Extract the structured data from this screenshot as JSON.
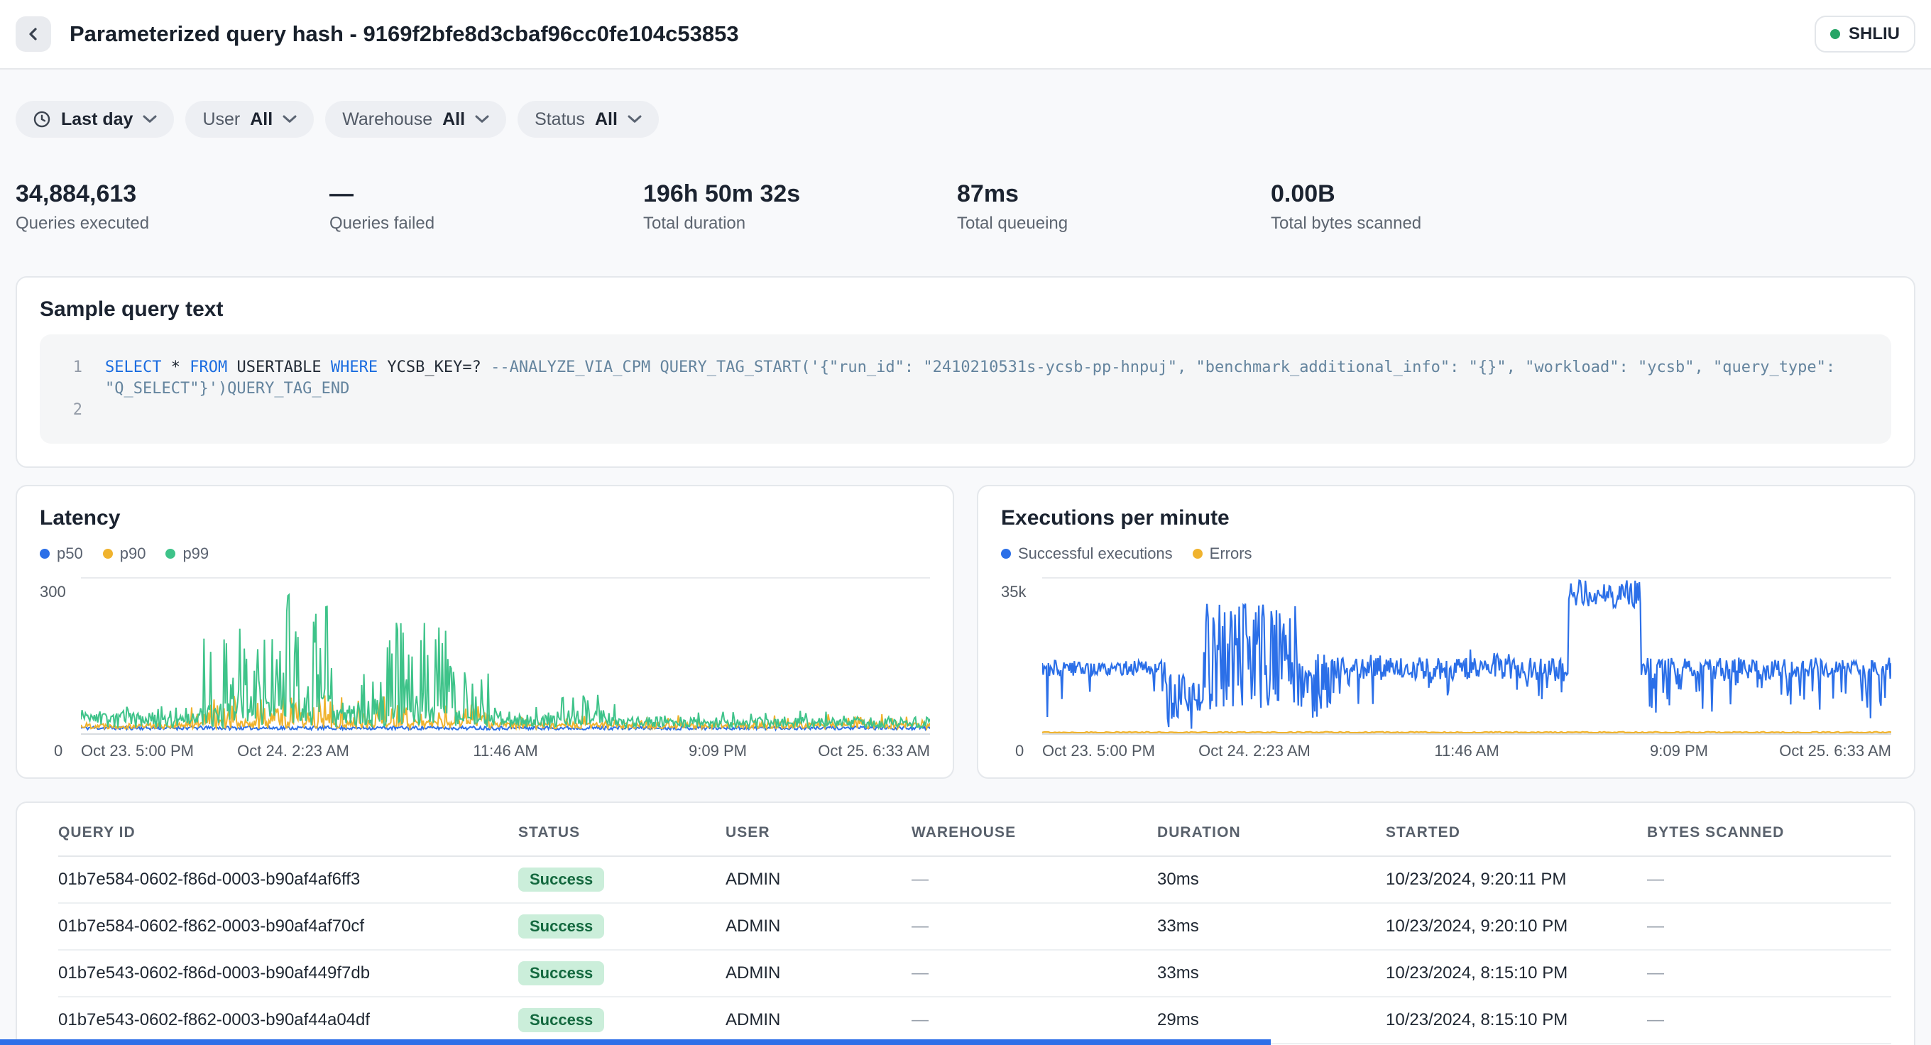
{
  "header": {
    "title": "Parameterized query hash - 9169f2bfe8d3cbaf96cc0fe104c53853",
    "account_badge": "SHLIU"
  },
  "filters": [
    {
      "id": "time-range",
      "icon": "clock",
      "label": "",
      "value": "Last day"
    },
    {
      "id": "user",
      "label": "User",
      "value": "All"
    },
    {
      "id": "warehouse",
      "label": "Warehouse",
      "value": "All"
    },
    {
      "id": "status",
      "label": "Status",
      "value": "All"
    }
  ],
  "stats": [
    {
      "value": "34,884,613",
      "label": "Queries executed"
    },
    {
      "value": "—",
      "label": "Queries failed"
    },
    {
      "value": "196h 50m 32s",
      "label": "Total duration"
    },
    {
      "value": "87ms",
      "label": "Total queueing"
    },
    {
      "value": "0.00B",
      "label": "Total bytes scanned"
    }
  ],
  "sample_query": {
    "title": "Sample query text",
    "lines": [
      {
        "number": "1",
        "tokens": [
          {
            "t": "SELECT",
            "c": "kw"
          },
          {
            "t": " * ",
            "c": "pl"
          },
          {
            "t": "FROM",
            "c": "kw"
          },
          {
            "t": " USERTABLE ",
            "c": "pl"
          },
          {
            "t": "WHERE",
            "c": "kw"
          },
          {
            "t": " YCSB_KEY=? ",
            "c": "pl"
          },
          {
            "t": "--ANALYZE_VIA_CPM QUERY_TAG_START('{\"run_id\": \"2410210531s-ycsb-pp-hnpuj\", \"benchmark_additional_info\": \"{}\", \"workload\": \"ycsb\", \"query_type\": \"Q_SELECT\"}')QUERY_TAG_END",
            "c": "cm"
          }
        ]
      },
      {
        "number": "2",
        "tokens": []
      }
    ]
  },
  "chart_data": [
    {
      "id": "latency",
      "type": "line",
      "title": "Latency",
      "ylabel": "",
      "xlabel": "",
      "y_top_label": "300",
      "y_bottom_label": "0",
      "ylim": [
        0,
        300
      ],
      "x_ticks": [
        "Oct 23. 5:00 PM",
        "Oct 24. 2:23 AM",
        "11:46 AM",
        "9:09 PM",
        "Oct 25. 6:33 AM"
      ],
      "legend_position": "top-left",
      "series": [
        {
          "name": "p50",
          "color": "#2b6fe8",
          "seed": 11,
          "n": 760,
          "w": 1,
          "seg": [
            {
              "f0": 0,
              "f1": 1,
              "base": 0.035,
              "amp": 0.012
            }
          ]
        },
        {
          "name": "p90",
          "color": "#f0b32e",
          "seed": 22,
          "n": 760,
          "w": 1,
          "seg": [
            {
              "f0": 0,
              "f1": 0.13,
              "base": 0.05,
              "amp": 0.02
            },
            {
              "f0": 0.13,
              "f1": 0.36,
              "base": 0.06,
              "amp": 0.03,
              "spikeP": 0.35,
              "spikeA": 0.18
            },
            {
              "f0": 0.36,
              "f1": 0.48,
              "base": 0.06,
              "amp": 0.03,
              "spikeP": 0.35,
              "spikeA": 0.15
            },
            {
              "f0": 0.48,
              "f1": 1,
              "base": 0.05,
              "amp": 0.02,
              "spikeP": 0.08,
              "spikeA": 0.06
            }
          ]
        },
        {
          "name": "p99",
          "color": "#3ec389",
          "seed": 33,
          "n": 760,
          "w": 1,
          "seg": [
            {
              "f0": 0,
              "f1": 0.14,
              "base": 0.085,
              "amp": 0.05,
              "spikeP": 0.15,
              "spikeA": 0.12
            },
            {
              "f0": 0.14,
              "f1": 0.24,
              "base": 0.12,
              "amp": 0.08,
              "spikeP": 0.45,
              "spikeA": 0.5
            },
            {
              "f0": 0.24,
              "f1": 0.3,
              "base": 0.14,
              "amp": 0.1,
              "spikeP": 0.5,
              "spikeA": 0.85
            },
            {
              "f0": 0.3,
              "f1": 0.36,
              "base": 0.1,
              "amp": 0.06,
              "spikeP": 0.3,
              "spikeA": 0.3
            },
            {
              "f0": 0.36,
              "f1": 0.43,
              "base": 0.12,
              "amp": 0.08,
              "spikeP": 0.5,
              "spikeA": 0.6
            },
            {
              "f0": 0.43,
              "f1": 0.48,
              "base": 0.1,
              "amp": 0.06,
              "spikeP": 0.35,
              "spikeA": 0.35
            },
            {
              "f0": 0.48,
              "f1": 0.56,
              "base": 0.08,
              "amp": 0.04,
              "spikeP": 0.1,
              "spikeA": 0.08
            },
            {
              "f0": 0.56,
              "f1": 0.63,
              "base": 0.1,
              "amp": 0.05,
              "spikeP": 0.3,
              "spikeA": 0.15
            },
            {
              "f0": 0.63,
              "f1": 1,
              "base": 0.07,
              "amp": 0.035,
              "spikeP": 0.08,
              "spikeA": 0.07
            }
          ]
        }
      ]
    },
    {
      "id": "executions",
      "type": "line",
      "title": "Executions per minute",
      "ylabel": "",
      "xlabel": "",
      "y_top_label": "35k",
      "y_bottom_label": "0",
      "ylim": [
        0,
        35000
      ],
      "x_ticks": [
        "Oct 23. 5:00 PM",
        "Oct 24. 2:23 AM",
        "11:46 AM",
        "9:09 PM",
        "Oct 25. 6:33 AM"
      ],
      "legend_position": "top-left",
      "series": [
        {
          "name": "Successful executions",
          "color": "#2b6fe8",
          "seed": 44,
          "n": 820,
          "w": 1.1,
          "seg": [
            {
              "f0": 0,
              "f1": 0.145,
              "base": 0.42,
              "amp": 0.05,
              "dipP": 0.05,
              "dipA": 0.3
            },
            {
              "f0": 0.145,
              "f1": 0.19,
              "base": 0.2,
              "amp": 0.18
            },
            {
              "f0": 0.19,
              "f1": 0.3,
              "base": 0.5,
              "amp": 0.35
            },
            {
              "f0": 0.3,
              "f1": 0.34,
              "base": 0.3,
              "amp": 0.22
            },
            {
              "f0": 0.34,
              "f1": 0.62,
              "base": 0.42,
              "amp": 0.07,
              "spikeP": 0.12,
              "spikeA": 0.12,
              "dipP": 0.15,
              "dipA": 0.18
            },
            {
              "f0": 0.62,
              "f1": 0.705,
              "base": 0.9,
              "amp": 0.09
            },
            {
              "f0": 0.705,
              "f1": 1,
              "base": 0.42,
              "amp": 0.07,
              "dipP": 0.22,
              "dipA": 0.28
            }
          ]
        },
        {
          "name": "Errors",
          "color": "#f0b32e",
          "seed": 55,
          "n": 400,
          "w": 1.2,
          "seg": [
            {
              "f0": 0,
              "f1": 1,
              "base": 0.006,
              "amp": 0.004
            }
          ]
        }
      ]
    }
  ],
  "table": {
    "columns": [
      "QUERY ID",
      "STATUS",
      "USER",
      "WAREHOUSE",
      "DURATION",
      "STARTED",
      "BYTES SCANNED"
    ],
    "rows": [
      {
        "query_id": "01b7e584-0602-f86d-0003-b90af4af6ff3",
        "status": "Success",
        "user": "ADMIN",
        "warehouse": "—",
        "duration": "30ms",
        "started": "10/23/2024, 9:20:11 PM",
        "bytes_scanned": "—"
      },
      {
        "query_id": "01b7e584-0602-f862-0003-b90af4af70cf",
        "status": "Success",
        "user": "ADMIN",
        "warehouse": "—",
        "duration": "33ms",
        "started": "10/23/2024, 9:20:10 PM",
        "bytes_scanned": "—"
      },
      {
        "query_id": "01b7e543-0602-f86d-0003-b90af449f7db",
        "status": "Success",
        "user": "ADMIN",
        "warehouse": "—",
        "duration": "33ms",
        "started": "10/23/2024, 8:15:10 PM",
        "bytes_scanned": "—"
      },
      {
        "query_id": "01b7e543-0602-f862-0003-b90af44a04df",
        "status": "Success",
        "user": "ADMIN",
        "warehouse": "—",
        "duration": "29ms",
        "started": "10/23/2024, 8:15:10 PM",
        "bytes_scanned": "—"
      }
    ]
  },
  "colors": {
    "accent_blue": "#2b6fe8",
    "amber": "#f0b32e",
    "green": "#3ec389",
    "success_bg": "#cbeeda",
    "success_text": "#14693f",
    "account_dot": "#27a567"
  }
}
